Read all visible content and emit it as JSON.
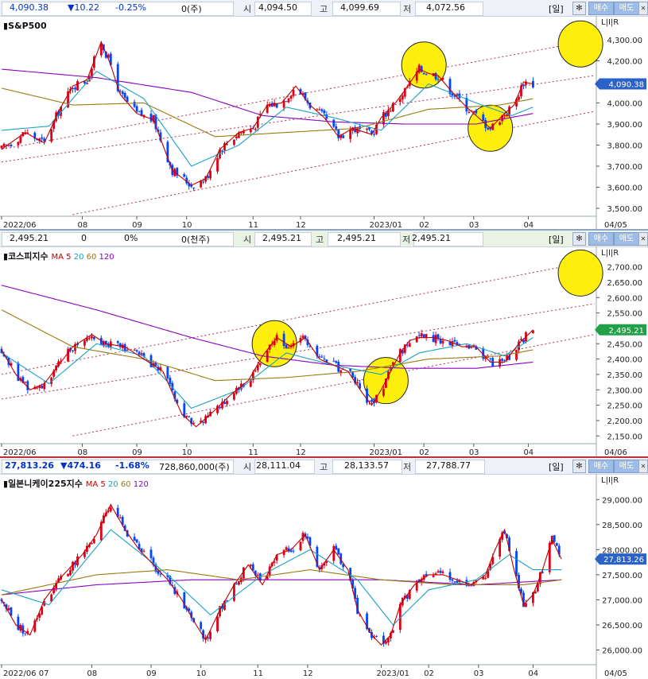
{
  "panels": [
    {
      "id": "sp500",
      "info": {
        "last": "4,090.38",
        "change": "▼10.22",
        "pct": "-0.25%",
        "volume": "0(주)",
        "open_label": "시",
        "open": "4,094.50",
        "high_label": "고",
        "high": "4,099.69",
        "low_label": "저",
        "low": "4,072.56",
        "period": "[일]",
        "buy": "매수",
        "sell": "매도"
      },
      "title": "S&P500",
      "ma_legend": [],
      "last_label": "4,090.38",
      "end_date": "04/05"
    },
    {
      "id": "kospi",
      "info": {
        "last": "2,495.21",
        "change": "0",
        "pct": "0%",
        "volume": "0(천주)",
        "open_label": "시",
        "open": "2,495.21",
        "high_label": "고",
        "high": "2,495.21",
        "low_label": "저",
        "low": "2,495.21",
        "period": "[일]",
        "buy": "매수",
        "sell": "매도"
      },
      "title": "코스피지수",
      "ma_legend": [
        {
          "label": "MA",
          "color": "#c00000"
        },
        {
          "label": "5",
          "color": "#c00000"
        },
        {
          "label": "20",
          "color": "#1aa0c8"
        },
        {
          "label": "60",
          "color": "#9a7a10"
        },
        {
          "label": "120",
          "color": "#8a00c0"
        }
      ],
      "last_label": "2,495.21",
      "end_date": "04/06"
    },
    {
      "id": "nikkei",
      "info": {
        "last": "27,813.26",
        "change": "▼474.16",
        "pct": "-1.68%",
        "volume": "728,860,000(주)",
        "open_label": "시",
        "open": "28,111.04",
        "high_label": "고",
        "high": "28,133.57",
        "low_label": "저",
        "low": "27,788.77",
        "period": "[일]",
        "buy": "매수",
        "sell": "매도"
      },
      "title": "일본니케이225지수",
      "ma_legend": [
        {
          "label": "MA",
          "color": "#c00000"
        },
        {
          "label": "5",
          "color": "#c00000"
        },
        {
          "label": "20",
          "color": "#1aa0c8"
        },
        {
          "label": "60",
          "color": "#9a7a10"
        },
        {
          "label": "120",
          "color": "#8a00c0"
        }
      ],
      "last_label": "27,813.26",
      "end_date": "04/05"
    }
  ],
  "chart_data": [
    {
      "type": "candlestick",
      "title": "S&P500",
      "y_ticks": [
        3500,
        3600,
        3700,
        3800,
        3900,
        4000,
        4100,
        4200,
        4300
      ],
      "y_tick_labels": [
        "3,500.00",
        "3,600.00",
        "3,700.00",
        "3,800.00",
        "3,900.00",
        "4,000.00",
        "4,100.00",
        "4,200.00",
        "4,300.00"
      ],
      "ylim": [
        3470,
        4360
      ],
      "x_labels": [
        "2022/06",
        "08",
        "09",
        "10",
        "11",
        "12",
        "2023/01",
        "02",
        "03",
        "04"
      ],
      "x_label_days": [
        0,
        34,
        57,
        78,
        106,
        126,
        157,
        178,
        199,
        222
      ],
      "total_days": 250,
      "anchors": [
        [
          0,
          3780
        ],
        [
          10,
          3860
        ],
        [
          18,
          3810
        ],
        [
          24,
          3960
        ],
        [
          30,
          4080
        ],
        [
          36,
          4110
        ],
        [
          42,
          4290
        ],
        [
          46,
          4180
        ],
        [
          50,
          4040
        ],
        [
          57,
          3950
        ],
        [
          64,
          3920
        ],
        [
          72,
          3680
        ],
        [
          80,
          3610
        ],
        [
          86,
          3640
        ],
        [
          92,
          3780
        ],
        [
          100,
          3860
        ],
        [
          106,
          3880
        ],
        [
          112,
          3990
        ],
        [
          118,
          4000
        ],
        [
          124,
          4080
        ],
        [
          130,
          3990
        ],
        [
          136,
          3930
        ],
        [
          142,
          3840
        ],
        [
          148,
          3880
        ],
        [
          156,
          3850
        ],
        [
          160,
          3930
        ],
        [
          166,
          4000
        ],
        [
          170,
          4060
        ],
        [
          176,
          4160
        ],
        [
          180,
          4140
        ],
        [
          184,
          4130
        ],
        [
          190,
          4050
        ],
        [
          196,
          3980
        ],
        [
          202,
          3920
        ],
        [
          206,
          3880
        ],
        [
          212,
          3950
        ],
        [
          216,
          3990
        ],
        [
          220,
          4100
        ],
        [
          224,
          4090
        ]
      ],
      "ma20": [
        [
          0,
          3870
        ],
        [
          20,
          3890
        ],
        [
          40,
          4150
        ],
        [
          60,
          4020
        ],
        [
          80,
          3700
        ],
        [
          100,
          3800
        ],
        [
          120,
          3980
        ],
        [
          140,
          3930
        ],
        [
          160,
          3870
        ],
        [
          180,
          4090
        ],
        [
          200,
          4000
        ],
        [
          215,
          3940
        ],
        [
          224,
          3980
        ]
      ],
      "ma60": [
        [
          0,
          4070
        ],
        [
          30,
          3990
        ],
        [
          60,
          4000
        ],
        [
          90,
          3840
        ],
        [
          120,
          3860
        ],
        [
          150,
          3880
        ],
        [
          180,
          3970
        ],
        [
          210,
          3990
        ],
        [
          224,
          4020
        ]
      ],
      "ma120": [
        [
          0,
          4160
        ],
        [
          40,
          4120
        ],
        [
          80,
          4050
        ],
        [
          110,
          3940
        ],
        [
          140,
          3910
        ],
        [
          170,
          3900
        ],
        [
          200,
          3900
        ],
        [
          224,
          3950
        ]
      ],
      "trendlines": [
        [
          [
            0,
            3780
          ],
          [
            250,
            4300
          ]
        ],
        [
          [
            30,
            3470
          ],
          [
            250,
            3960
          ]
        ],
        [
          [
            0,
            3720
          ],
          [
            250,
            4130
          ]
        ]
      ],
      "circles": [
        [
          178,
          4180
        ],
        [
          206,
          3880
        ],
        [
          244,
          4280
        ]
      ],
      "last": 4090.38
    },
    {
      "type": "candlestick",
      "title": "코스피지수",
      "y_ticks": [
        2150,
        2200,
        2250,
        2300,
        2350,
        2400,
        2450,
        2500,
        2550,
        2600,
        2650,
        2700
      ],
      "y_tick_labels": [
        "2,150.00",
        "2,200.00",
        "2,250.00",
        "2,300.00",
        "2,350.00",
        "2,400.00",
        "2,450.00",
        "2,500.00",
        "2,550.00",
        "2,600.00",
        "2,650.00",
        "2,700.00"
      ],
      "ylim": [
        2130,
        2730
      ],
      "x_labels": [
        "2022/06",
        "08",
        "09",
        "10",
        "11",
        "12",
        "2023/01",
        "02",
        "03",
        "04"
      ],
      "x_label_days": [
        0,
        34,
        57,
        78,
        106,
        126,
        157,
        178,
        199,
        222
      ],
      "total_days": 250,
      "anchors": [
        [
          0,
          2430
        ],
        [
          6,
          2350
        ],
        [
          12,
          2300
        ],
        [
          18,
          2320
        ],
        [
          24,
          2380
        ],
        [
          30,
          2440
        ],
        [
          38,
          2480
        ],
        [
          44,
          2450
        ],
        [
          52,
          2440
        ],
        [
          60,
          2400
        ],
        [
          68,
          2360
        ],
        [
          76,
          2220
        ],
        [
          82,
          2180
        ],
        [
          88,
          2220
        ],
        [
          96,
          2280
        ],
        [
          104,
          2330
        ],
        [
          110,
          2410
        ],
        [
          116,
          2470
        ],
        [
          122,
          2440
        ],
        [
          128,
          2470
        ],
        [
          134,
          2400
        ],
        [
          140,
          2380
        ],
        [
          146,
          2360
        ],
        [
          152,
          2290
        ],
        [
          156,
          2250
        ],
        [
          160,
          2300
        ],
        [
          164,
          2360
        ],
        [
          168,
          2420
        ],
        [
          172,
          2460
        ],
        [
          176,
          2470
        ],
        [
          182,
          2470
        ],
        [
          188,
          2460
        ],
        [
          194,
          2440
        ],
        [
          200,
          2440
        ],
        [
          206,
          2390
        ],
        [
          212,
          2390
        ],
        [
          218,
          2450
        ],
        [
          224,
          2495
        ]
      ],
      "ma20": [
        [
          0,
          2420
        ],
        [
          20,
          2320
        ],
        [
          40,
          2450
        ],
        [
          60,
          2410
        ],
        [
          80,
          2240
        ],
        [
          100,
          2300
        ],
        [
          120,
          2420
        ],
        [
          140,
          2380
        ],
        [
          160,
          2350
        ],
        [
          176,
          2420
        ],
        [
          196,
          2450
        ],
        [
          212,
          2410
        ],
        [
          224,
          2470
        ]
      ],
      "ma60": [
        [
          0,
          2560
        ],
        [
          30,
          2440
        ],
        [
          60,
          2400
        ],
        [
          90,
          2330
        ],
        [
          120,
          2340
        ],
        [
          150,
          2360
        ],
        [
          180,
          2400
        ],
        [
          210,
          2410
        ],
        [
          224,
          2430
        ]
      ],
      "ma120": [
        [
          0,
          2640
        ],
        [
          40,
          2560
        ],
        [
          80,
          2470
        ],
        [
          110,
          2410
        ],
        [
          140,
          2380
        ],
        [
          170,
          2370
        ],
        [
          200,
          2370
        ],
        [
          224,
          2390
        ]
      ],
      "trendlines": [
        [
          [
            0,
            2270
          ],
          [
            250,
            2580
          ]
        ],
        [
          [
            30,
            2150
          ],
          [
            250,
            2480
          ]
        ],
        [
          [
            0,
            2350
          ],
          [
            250,
            2720
          ]
        ]
      ],
      "circles": [
        [
          115,
          2450
        ],
        [
          162,
          2330
        ],
        [
          244,
          2680
        ]
      ],
      "last": 2495.21
    },
    {
      "type": "candlestick",
      "title": "일본니케이225지수",
      "y_ticks": [
        26000,
        26500,
        27000,
        27500,
        28000,
        28500,
        29000
      ],
      "y_tick_labels": [
        "26,000.00",
        "26,500.00",
        "27,000.00",
        "27,500.00",
        "28,000.00",
        "28,500.00",
        "29,000.00"
      ],
      "ylim": [
        25770,
        29290
      ],
      "x_labels": [
        "2022/06 07",
        "08",
        "09",
        "10",
        "11",
        "12",
        "2023/01",
        "02",
        "03",
        "04"
      ],
      "x_label_days": [
        0,
        38,
        63,
        84,
        108,
        129,
        160,
        180,
        201,
        224
      ],
      "total_days": 250,
      "anchors": [
        [
          0,
          27000
        ],
        [
          6,
          26500
        ],
        [
          12,
          26300
        ],
        [
          18,
          27000
        ],
        [
          26,
          27500
        ],
        [
          34,
          27900
        ],
        [
          40,
          28300
        ],
        [
          46,
          28900
        ],
        [
          52,
          28400
        ],
        [
          58,
          28000
        ],
        [
          64,
          27700
        ],
        [
          70,
          27400
        ],
        [
          76,
          27000
        ],
        [
          82,
          26500
        ],
        [
          86,
          26200
        ],
        [
          92,
          26800
        ],
        [
          98,
          27300
        ],
        [
          104,
          27700
        ],
        [
          110,
          27300
        ],
        [
          116,
          27900
        ],
        [
          122,
          28000
        ],
        [
          128,
          28300
        ],
        [
          134,
          27600
        ],
        [
          140,
          28000
        ],
        [
          146,
          27600
        ],
        [
          150,
          26800
        ],
        [
          156,
          26300
        ],
        [
          160,
          26100
        ],
        [
          164,
          26300
        ],
        [
          168,
          26900
        ],
        [
          174,
          27300
        ],
        [
          180,
          27500
        ],
        [
          186,
          27500
        ],
        [
          192,
          27400
        ],
        [
          198,
          27300
        ],
        [
          204,
          27500
        ],
        [
          208,
          28000
        ],
        [
          212,
          28400
        ],
        [
          216,
          27600
        ],
        [
          220,
          26900
        ],
        [
          224,
          27100
        ],
        [
          228,
          27600
        ],
        [
          232,
          28200
        ],
        [
          236,
          27813
        ]
      ],
      "ma20": [
        [
          0,
          27200
        ],
        [
          20,
          26900
        ],
        [
          46,
          28400
        ],
        [
          70,
          27500
        ],
        [
          88,
          26700
        ],
        [
          110,
          27500
        ],
        [
          130,
          28000
        ],
        [
          150,
          27400
        ],
        [
          165,
          26500
        ],
        [
          180,
          27200
        ],
        [
          200,
          27400
        ],
        [
          214,
          27900
        ],
        [
          224,
          27600
        ],
        [
          236,
          27600
        ]
      ],
      "ma60": [
        [
          0,
          27100
        ],
        [
          40,
          27500
        ],
        [
          70,
          27600
        ],
        [
          100,
          27400
        ],
        [
          130,
          27600
        ],
        [
          160,
          27400
        ],
        [
          190,
          27300
        ],
        [
          220,
          27300
        ],
        [
          236,
          27400
        ]
      ],
      "ma120": [
        [
          0,
          27100
        ],
        [
          40,
          27300
        ],
        [
          80,
          27400
        ],
        [
          120,
          27400
        ],
        [
          160,
          27400
        ],
        [
          200,
          27300
        ],
        [
          236,
          27400
        ]
      ],
      "trendlines": [],
      "circles": [],
      "last": 27813.26
    }
  ]
}
